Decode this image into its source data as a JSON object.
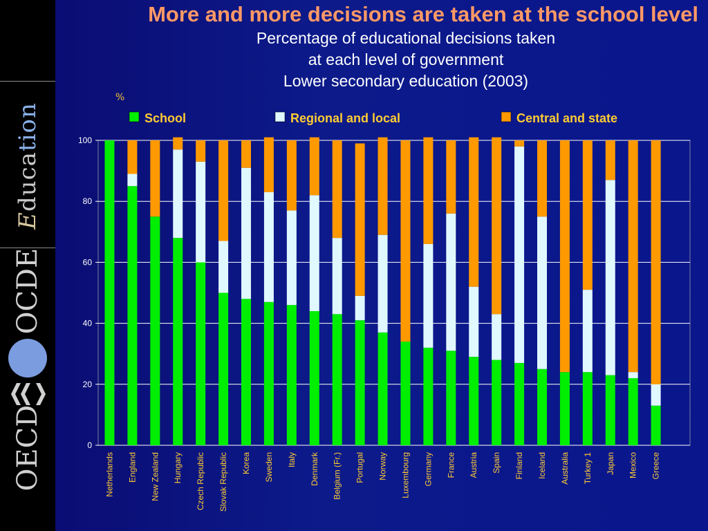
{
  "sidebar": {
    "logo_education": "Education",
    "logo_ocde": "OCDE",
    "logo_oecd": "OECD"
  },
  "header": {
    "title": "More and more decisions are taken at the school level",
    "subtitle_line1": "Percentage of educational decisions taken",
    "subtitle_line2": "at each level of government",
    "subtitle_line3": "Lower secondary education (2003)"
  },
  "chart_data": {
    "type": "bar",
    "stacked": true,
    "unit_label": "%",
    "ylim": [
      0,
      100
    ],
    "yticks": [
      0,
      20,
      40,
      60,
      80,
      100
    ],
    "grid": true,
    "legend_position": "top",
    "categories": [
      "Netherlands",
      "England",
      "New Zealand",
      "Hungary",
      "Czech Republic",
      "Slovak Republic",
      "Korea",
      "Sweden",
      "Italy",
      "Denmark",
      "Belgium (Fr.)",
      "Portugal",
      "Norway",
      "Luxembourg",
      "Germany",
      "France",
      "Austria",
      "Spain",
      "Finland",
      "Iceland",
      "Australia",
      "Turkey 1",
      "Japan",
      "Mexico",
      "Greece"
    ],
    "series": [
      {
        "name": "School",
        "color": "#00ee00",
        "values": [
          100,
          85,
          75,
          68,
          60,
          50,
          48,
          47,
          46,
          44,
          43,
          41,
          37,
          34,
          32,
          31,
          29,
          28,
          27,
          25,
          24,
          24,
          23,
          22,
          13
        ]
      },
      {
        "name": "Regional and local",
        "color": "#e0f8ff",
        "values": [
          0,
          4,
          0,
          29,
          33,
          17,
          43,
          36,
          31,
          38,
          25,
          8,
          32,
          0,
          34,
          45,
          23,
          15,
          71,
          50,
          0,
          27,
          64,
          2,
          7
        ]
      },
      {
        "name": "Central and state",
        "color": "#ff9900",
        "values": [
          0,
          11,
          25,
          4,
          7,
          33,
          9,
          18,
          23,
          19,
          32,
          50,
          32,
          66,
          35,
          24,
          49,
          58,
          2,
          25,
          76,
          49,
          13,
          76,
          80
        ]
      }
    ]
  }
}
